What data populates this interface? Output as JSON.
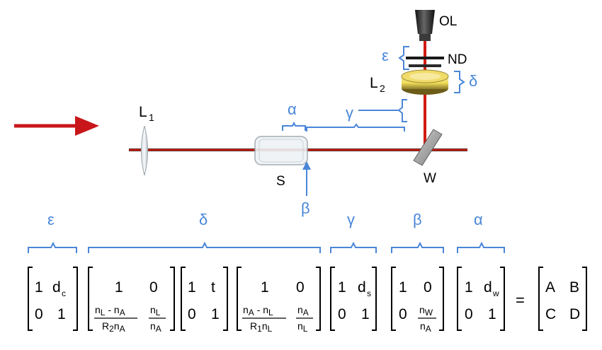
{
  "labels": {
    "objective": "OL",
    "nd": "ND",
    "lens2": "L",
    "lens2_sub": "2",
    "lens1": "L",
    "lens1_sub": "1",
    "sample": "S",
    "window": "W"
  },
  "greek": {
    "epsilon": "ε",
    "delta": "δ",
    "gamma": "γ",
    "beta": "β",
    "alpha": "α"
  },
  "matrices": {
    "m1": {
      "a": "1",
      "b_main": "d",
      "b_sub": "c",
      "c": "0",
      "d": "1"
    },
    "m2": {
      "a": "1",
      "b": "0",
      "c_num": "n",
      "c_num_s1": "L",
      "c_num_mid": " - n",
      "c_num_s2": "A",
      "c_den": "R",
      "c_den_s1": "2",
      "c_den_mid": "n",
      "c_den_s2": "A",
      "d_num": "n",
      "d_num_s": "L",
      "d_den": "n",
      "d_den_s": "A"
    },
    "m3": {
      "a": "1",
      "b": "t",
      "c": "0",
      "d": "1"
    },
    "m4": {
      "a": "1",
      "b": "0",
      "c_num": "n",
      "c_num_s1": "A",
      "c_num_mid": " - n",
      "c_num_s2": "L",
      "c_den": "R",
      "c_den_s1": "1",
      "c_den_mid": "n",
      "c_den_s2": "L",
      "d_num": "n",
      "d_num_s": "A",
      "d_den": "n",
      "d_den_s": "L"
    },
    "m5": {
      "a": "1",
      "b_main": "d",
      "b_sub": "s",
      "c": "0",
      "d": "1"
    },
    "m6": {
      "a": "1",
      "b": "0",
      "c": "0",
      "d_num": "n",
      "d_num_s": "W",
      "d_den": "n",
      "d_den_s": "A"
    },
    "m7": {
      "a": "1",
      "b_main": "d",
      "b_sub": "w",
      "c": "0",
      "d": "1"
    },
    "equals": "=",
    "result": {
      "a": "A",
      "b": "B",
      "c": "C",
      "d": "D"
    }
  },
  "colors": {
    "beam": "#d01c10",
    "annotation": "#4a86d8",
    "text": "#000000"
  }
}
